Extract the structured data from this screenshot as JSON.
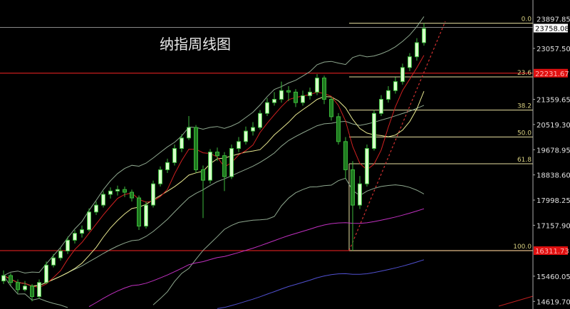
{
  "chart_data": {
    "type": "candlestick",
    "title": "纳指周线图",
    "colors": {
      "background": "#000000",
      "candle_up_fill": "#d6ffc8",
      "candle_down_fill": "#1f7a1f",
      "candle_outline": "#3cb83c",
      "ma_fast": "#d02020",
      "ma_mid": "#e8e890",
      "bollinger": "#8fa88f",
      "ma_long": "#c030c0",
      "ma_longer": "#5050d0",
      "support_line": "#c81e1e",
      "fib_line": "#e8e0a0",
      "axis_text": "#e0e0e0"
    },
    "y_axis": {
      "ticks": [
        23057.5,
        21359.65,
        20519.3,
        19678.95,
        18838.6,
        17998.25,
        17157.9,
        15460.05,
        14619.7
      ],
      "top_label": "23897.85",
      "current_price": "23758.08",
      "marked_prices": [
        "22231.67",
        "16311.73"
      ]
    },
    "fibonacci": {
      "from": 16311.73,
      "to": 23897.85,
      "levels": [
        {
          "label": "0.0",
          "value": 23897.85
        },
        {
          "label": "23.6",
          "value": 22107.5
        },
        {
          "label": "38.2",
          "value": 20999.9
        },
        {
          "label": "50.0",
          "value": 20104.8
        },
        {
          "label": "61.8",
          "value": 19209.7
        },
        {
          "label": "100.0",
          "value": 16311.73
        }
      ]
    },
    "horizontal_lines": [
      22231.67,
      16311.73,
      23758.08
    ],
    "ohlc": [
      [
        15300,
        15650,
        15200,
        15480
      ],
      [
        15480,
        15560,
        15150,
        15250
      ],
      [
        15250,
        15350,
        14900,
        15010
      ],
      [
        15010,
        15300,
        14950,
        15130
      ],
      [
        15130,
        15200,
        14620,
        14780
      ],
      [
        14780,
        15350,
        14700,
        15250
      ],
      [
        15250,
        15950,
        15200,
        15830
      ],
      [
        15830,
        16200,
        15750,
        16070
      ],
      [
        16070,
        16420,
        15980,
        16300
      ],
      [
        16300,
        16780,
        16200,
        16660
      ],
      [
        16660,
        17000,
        16550,
        16890
      ],
      [
        16890,
        17150,
        16750,
        17010
      ],
      [
        17010,
        17720,
        16950,
        17600
      ],
      [
        17600,
        17950,
        17500,
        17830
      ],
      [
        17830,
        18300,
        17750,
        18190
      ],
      [
        18190,
        18420,
        18050,
        18300
      ],
      [
        18300,
        18480,
        18150,
        18350
      ],
      [
        18350,
        18450,
        18100,
        18260
      ],
      [
        18260,
        18350,
        17950,
        18070
      ],
      [
        18070,
        18150,
        17000,
        17130
      ],
      [
        17130,
        17950,
        17050,
        17830
      ],
      [
        17830,
        18650,
        17750,
        18540
      ],
      [
        18540,
        19120,
        18450,
        19010
      ],
      [
        19010,
        19380,
        18900,
        19250
      ],
      [
        19250,
        19850,
        19150,
        19720
      ],
      [
        19720,
        20200,
        19600,
        20070
      ],
      [
        20070,
        20800,
        20000,
        20420
      ],
      [
        20420,
        20500,
        18900,
        19010
      ],
      [
        19010,
        19150,
        17400,
        18660
      ],
      [
        18660,
        19700,
        18550,
        19600
      ],
      [
        19600,
        19750,
        19300,
        19480
      ],
      [
        19480,
        19600,
        18300,
        18780
      ],
      [
        18780,
        19850,
        18700,
        19720
      ],
      [
        19720,
        20100,
        19600,
        19950
      ],
      [
        19950,
        20450,
        19850,
        20300
      ],
      [
        20300,
        20600,
        20150,
        20420
      ],
      [
        20420,
        21000,
        20350,
        20890
      ],
      [
        20890,
        21400,
        20800,
        21250
      ],
      [
        21250,
        21600,
        21150,
        21360
      ],
      [
        21360,
        21950,
        21250,
        21650
      ],
      [
        21650,
        21800,
        21300,
        21600
      ],
      [
        21600,
        21700,
        21100,
        21250
      ],
      [
        21250,
        21650,
        21150,
        21480
      ],
      [
        21480,
        21750,
        21350,
        21600
      ],
      [
        21600,
        22200,
        21500,
        22070
      ],
      [
        22070,
        22150,
        21200,
        21360
      ],
      [
        21360,
        21450,
        20650,
        20780
      ],
      [
        20780,
        20900,
        19850,
        19950
      ],
      [
        19950,
        20100,
        18700,
        19010
      ],
      [
        19010,
        19300,
        16310,
        17830
      ],
      [
        17830,
        18800,
        17700,
        18540
      ],
      [
        18540,
        19850,
        18450,
        19720
      ],
      [
        19720,
        21000,
        19650,
        20890
      ],
      [
        20890,
        21500,
        20800,
        21360
      ],
      [
        21360,
        21800,
        21250,
        21650
      ],
      [
        21650,
        22100,
        21550,
        21950
      ],
      [
        21950,
        22550,
        21850,
        22420
      ],
      [
        22420,
        22900,
        22300,
        22780
      ],
      [
        22780,
        23400,
        22650,
        23250
      ],
      [
        23250,
        23900,
        23150,
        23720
      ]
    ]
  }
}
